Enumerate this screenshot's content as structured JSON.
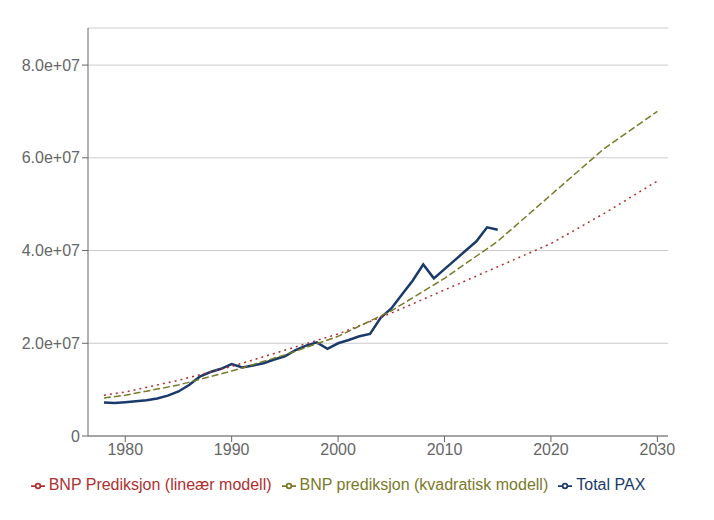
{
  "chart_data": {
    "type": "line",
    "xlim": [
      1976.5,
      2031
    ],
    "ylim": [
      0,
      88000000
    ],
    "xticks": [
      1980,
      1990,
      2000,
      2010,
      2020,
      2030
    ],
    "yticks": [
      0,
      {
        "value": 20000000,
        "label": "2.0e+07"
      },
      {
        "value": 40000000,
        "label": "4.0e+07"
      },
      {
        "value": 60000000,
        "label": "6.0e+07"
      },
      {
        "value": 80000000,
        "label": "8.0e+07"
      }
    ],
    "grid": true,
    "legend": "bottom",
    "series": [
      {
        "name": "Total PAX",
        "color": "#1a3a6b",
        "line_style": "solid",
        "x": [
          1978,
          1979,
          1980,
          1981,
          1982,
          1983,
          1984,
          1985,
          1986,
          1987,
          1988,
          1989,
          1990,
          1991,
          1992,
          1993,
          1994,
          1995,
          1996,
          1997,
          1998,
          1999,
          2000,
          2001,
          2002,
          2003,
          2004,
          2005,
          2006,
          2007,
          2008,
          2009,
          2010,
          2011,
          2012,
          2013,
          2014,
          2015
        ],
        "values": [
          7200000,
          7100000,
          7300000,
          7500000,
          7700000,
          8100000,
          8700000,
          9600000,
          11000000,
          12800000,
          13800000,
          14500000,
          15500000,
          14800000,
          15200000,
          15700000,
          16500000,
          17200000,
          18500000,
          19500000,
          20200000,
          18800000,
          20000000,
          20700000,
          21500000,
          22000000,
          25500000,
          27500000,
          30500000,
          33500000,
          37000000,
          34000000,
          36000000,
          38000000,
          40000000,
          42000000,
          45000000,
          44500000
        ]
      },
      {
        "name": "BNP Prediksjon (lineær modell)",
        "color": "#b03030",
        "line_style": "dotted",
        "x": [
          1978,
          1980,
          1985,
          1990,
          1995,
          2000,
          2005,
          2010,
          2015,
          2020,
          2025,
          2030
        ],
        "values": [
          8800000,
          9500000,
          12000000,
          15000000,
          18500000,
          22000000,
          26500000,
          31500000,
          36500000,
          41500000,
          48000000,
          55000000
        ]
      },
      {
        "name": "BNP prediksjon (kvadratisk modell)",
        "color": "#7a7a2a",
        "line_style": "dashed",
        "x": [
          1978,
          1980,
          1985,
          1990,
          1995,
          2000,
          2005,
          2010,
          2015,
          2020,
          2025,
          2030
        ],
        "values": [
          8200000,
          8800000,
          11000000,
          14000000,
          17500000,
          21500000,
          27000000,
          34000000,
          42000000,
          52000000,
          62000000,
          70000000
        ]
      }
    ]
  }
}
